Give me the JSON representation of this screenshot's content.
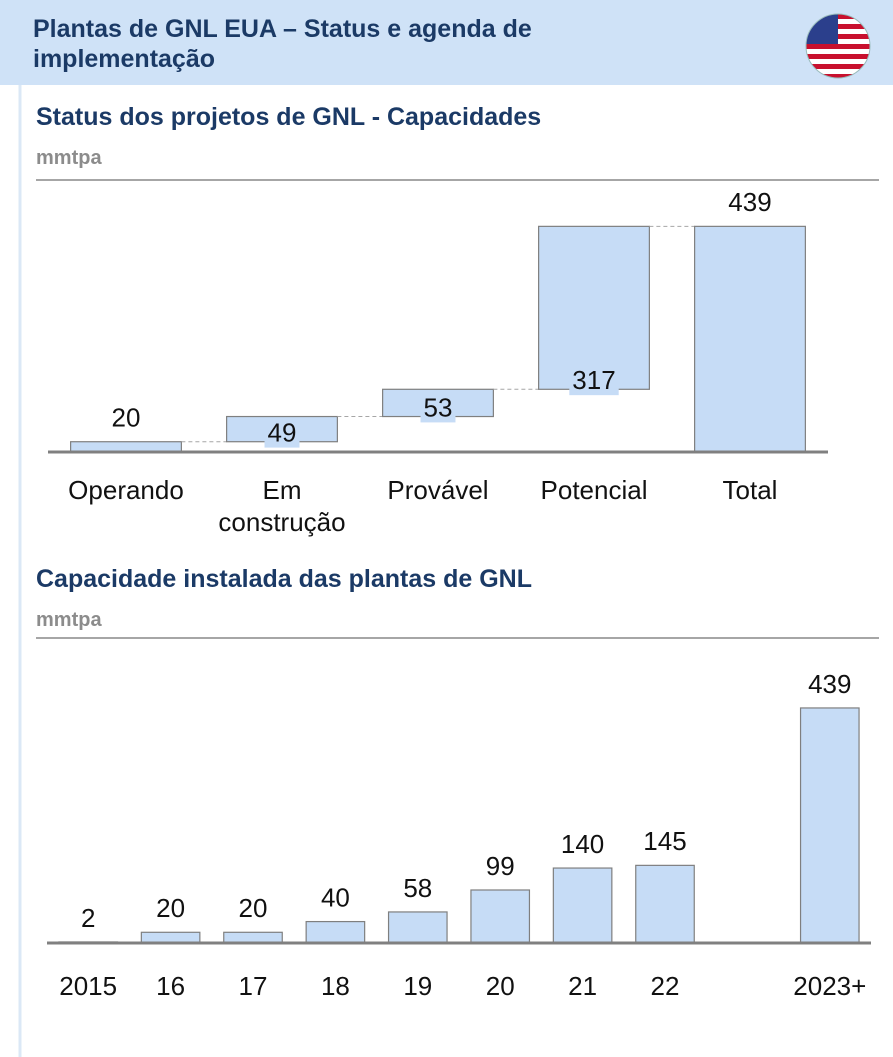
{
  "header": {
    "title": "Plantas de GNL EUA – Status e agenda de implementação"
  },
  "chart_data": [
    {
      "type": "waterfall",
      "title": "Status dos projetos de GNL - Capacidades",
      "subtitle": "mmtpa",
      "categories": [
        "Operando",
        "Em construção",
        "Provável",
        "Potencial",
        "Total"
      ],
      "values": [
        20,
        49,
        53,
        317,
        439
      ],
      "last_is_total": true,
      "color": "#c6dcf6",
      "ylim": [
        0,
        500
      ]
    },
    {
      "type": "bar",
      "title": "Capacidade instalada das plantas de GNL",
      "subtitle": "mmtpa",
      "categories": [
        "2015",
        "16",
        "17",
        "18",
        "19",
        "20",
        "21",
        "22",
        null,
        "2023+"
      ],
      "values": [
        2,
        20,
        20,
        40,
        58,
        99,
        140,
        145,
        null,
        439
      ],
      "color": "#c6dcf6",
      "ylim": [
        0,
        480
      ]
    }
  ]
}
